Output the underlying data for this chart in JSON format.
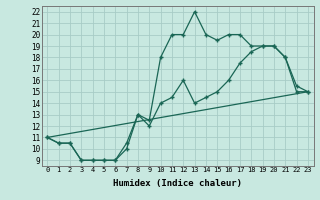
{
  "xlabel": "Humidex (Indice chaleur)",
  "xlim": [
    -0.5,
    23.5
  ],
  "ylim": [
    8.5,
    22.5
  ],
  "xticks": [
    0,
    1,
    2,
    3,
    4,
    5,
    6,
    7,
    8,
    9,
    10,
    11,
    12,
    13,
    14,
    15,
    16,
    17,
    18,
    19,
    20,
    21,
    22,
    23
  ],
  "yticks": [
    9,
    10,
    11,
    12,
    13,
    14,
    15,
    16,
    17,
    18,
    19,
    20,
    21,
    22
  ],
  "background_color": "#c8e8e0",
  "grid_color": "#a8ccc6",
  "line_color": "#1a6655",
  "line1_x": [
    0,
    1,
    2,
    3,
    4,
    5,
    6,
    7,
    8,
    9,
    10,
    11,
    12,
    13,
    14,
    15,
    16,
    17,
    18,
    19,
    20,
    21,
    22,
    23
  ],
  "line1_y": [
    11,
    10.5,
    10.5,
    9,
    9,
    9,
    9,
    10.5,
    13,
    12.5,
    18,
    20,
    20,
    22,
    20,
    19.5,
    20,
    20,
    19,
    19,
    19,
    18,
    15,
    15
  ],
  "line2_x": [
    0,
    1,
    2,
    3,
    4,
    5,
    6,
    7,
    8,
    9,
    10,
    11,
    12,
    13,
    14,
    15,
    16,
    17,
    18,
    19,
    20,
    21,
    22,
    23
  ],
  "line2_y": [
    11,
    10.5,
    10.5,
    9,
    9,
    9,
    9,
    10,
    13,
    12,
    14,
    14.5,
    16,
    14,
    14.5,
    15,
    16,
    17.5,
    18.5,
    19,
    19,
    18,
    15.5,
    15
  ],
  "line3_x": [
    0,
    23
  ],
  "line3_y": [
    11,
    15
  ]
}
